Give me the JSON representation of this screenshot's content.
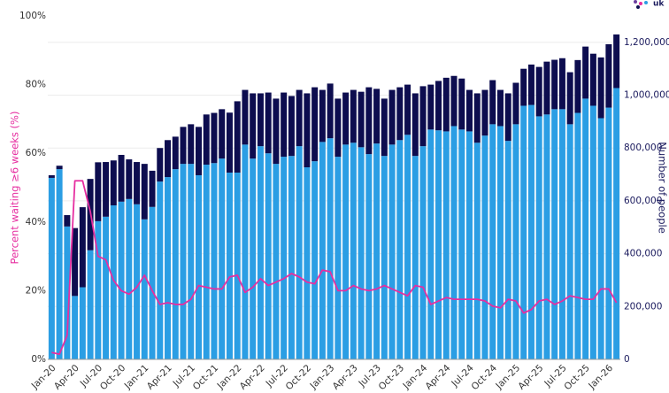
{
  "logo_text": "uk",
  "chart_data": {
    "type": "bar",
    "stacked": true,
    "y_label": "Percent waiting ≥6 weeks (%)",
    "y2_label": "Number of people",
    "categories": [
      "Jan-20",
      null,
      null,
      "Apr-20",
      null,
      null,
      "Jul-20",
      null,
      null,
      "Oct-20",
      null,
      null,
      "Jan-21",
      null,
      null,
      "Apr-21",
      null,
      null,
      "Jul-21",
      null,
      null,
      "Oct-21",
      null,
      null,
      "Jan-22",
      null,
      null,
      "Apr-22",
      null,
      null,
      "Jul-22",
      null,
      null,
      "Oct-22",
      null,
      null,
      "Jan-23",
      null,
      null,
      "Apr-23",
      null,
      null,
      "Jul-23",
      null,
      null,
      "Oct-23",
      null,
      null,
      "Jan-24",
      null,
      null,
      "Apr-24",
      null,
      null,
      "Jul-24",
      null,
      null,
      "Oct-24",
      null,
      null,
      "Jan-25",
      null,
      null,
      "Apr-25",
      null,
      null,
      "Jul-25",
      null,
      null,
      "Oct-25",
      null,
      null,
      "Jan-26",
      null
    ],
    "series": [
      {
        "color": "#2b9ee4",
        "axis": "y2",
        "values": [
          687000,
          720000,
          503000,
          240000,
          273000,
          413000,
          523000,
          540000,
          583000,
          597000,
          607000,
          587000,
          530000,
          577000,
          673000,
          690000,
          720000,
          740000,
          740000,
          697000,
          737000,
          743000,
          760000,
          707000,
          707000,
          813000,
          760000,
          807000,
          780000,
          740000,
          767000,
          770000,
          807000,
          727000,
          750000,
          823000,
          837000,
          767000,
          813000,
          820000,
          803000,
          777000,
          817000,
          770000,
          813000,
          830000,
          850000,
          770000,
          807000,
          870000,
          867000,
          863000,
          883000,
          870000,
          863000,
          820000,
          847000,
          890000,
          883000,
          827000,
          890000,
          960000,
          963000,
          920000,
          927000,
          947000,
          947000,
          890000,
          933000,
          987000,
          960000,
          913000,
          953000,
          1027000
        ]
      },
      {
        "color": "#0d0d4f",
        "axis": "y2",
        "values": [
          10000,
          13000,
          43000,
          257000,
          303000,
          270000,
          223000,
          207000,
          170000,
          177000,
          150000,
          160000,
          210000,
          137000,
          127000,
          140000,
          123000,
          140000,
          150000,
          183000,
          190000,
          190000,
          187000,
          227000,
          270000,
          207000,
          247000,
          200000,
          230000,
          247000,
          243000,
          227000,
          213000,
          280000,
          280000,
          197000,
          207000,
          220000,
          197000,
          200000,
          210000,
          253000,
          207000,
          217000,
          207000,
          200000,
          190000,
          237000,
          227000,
          170000,
          187000,
          203000,
          190000,
          193000,
          157000,
          187000,
          173000,
          167000,
          137000,
          180000,
          157000,
          140000,
          153000,
          187000,
          200000,
          187000,
          193000,
          197000,
          200000,
          197000,
          197000,
          230000,
          240000,
          203000
        ]
      },
      {
        "type": "line",
        "color": "#e62ea0",
        "axis": "y",
        "values": [
          2,
          1.5,
          7,
          52,
          52,
          43,
          30,
          29,
          23,
          20,
          19,
          21,
          24.5,
          20,
          16,
          16.5,
          16,
          16,
          17.5,
          21.5,
          21,
          20.5,
          20.5,
          24,
          24.5,
          19.5,
          21,
          23.5,
          21.5,
          22.5,
          23.5,
          25,
          24,
          22.5,
          22,
          26,
          25.5,
          20,
          20,
          21.5,
          20.5,
          20,
          20.5,
          21.5,
          20.5,
          19.5,
          18.5,
          21.5,
          21,
          16,
          17,
          18,
          17.5,
          17.5,
          17.5,
          17.5,
          17,
          15.5,
          15,
          17.5,
          17,
          13.5,
          14.5,
          17,
          17.5,
          16,
          17,
          18.5,
          18,
          17.5,
          17.5,
          20.5,
          20.5,
          16.5
        ]
      }
    ],
    "ylim": [
      0,
      100
    ],
    "yticks": [
      {
        "value": 0,
        "label": "0%"
      },
      {
        "value": 20,
        "label": "20%"
      },
      {
        "value": 40,
        "label": "40%"
      },
      {
        "value": 60,
        "label": "60%"
      },
      {
        "value": 80,
        "label": "80%"
      },
      {
        "value": 100,
        "label": "100%"
      }
    ],
    "y2lim": [
      0,
      1300000
    ],
    "y2ticks": [
      0,
      {
        "value": 200000,
        "label": "200,000"
      },
      {
        "value": 400000,
        "label": "400,000"
      },
      {
        "value": 600000,
        "label": "600,000"
      },
      {
        "value": 800000,
        "label": "800,000"
      },
      {
        "value": 1000000,
        "label": "1,000,000"
      },
      {
        "value": 1200000,
        "label": "1,200,000"
      }
    ],
    "grid": true
  }
}
